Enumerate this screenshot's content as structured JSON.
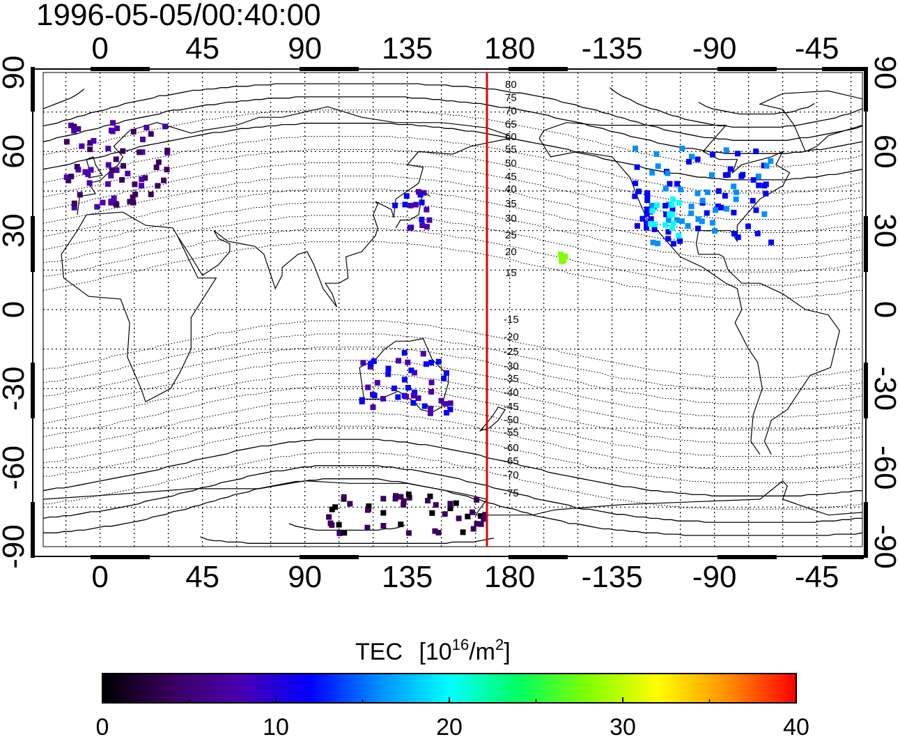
{
  "title": "1996-05-05/00:40:00",
  "lon_tick_labels": [
    "0",
    "45",
    "90",
    "135",
    "180",
    "-135",
    "-90",
    "-45"
  ],
  "lat_tick_labels": [
    "90",
    "60",
    "30",
    "0",
    "-30",
    "-60",
    "-90"
  ],
  "map": {
    "lon_range": [
      -25,
      335
    ],
    "lat_range": [
      -90,
      90
    ],
    "grid": "dotted, every 15 degrees",
    "meridian_line": {
      "lon": 170,
      "color": "#e00000"
    }
  },
  "contour_labels": {
    "north": [
      "80",
      "75",
      "70",
      "65",
      "60",
      "55",
      "50",
      "45",
      "40",
      "35",
      "30",
      "25",
      "20",
      "15"
    ],
    "south": [
      "-15",
      "-20",
      "-25",
      "-30",
      "-35",
      "-40",
      "-45",
      "-50",
      "-55",
      "-60",
      "-65",
      "-70",
      "-75"
    ]
  },
  "colorbar": {
    "label": "TEC",
    "units_prefix": "[10",
    "units_exp": "16",
    "units_mid": "/m",
    "units_exp2": "2",
    "units_suffix": "]",
    "tick_labels": [
      "0",
      "10",
      "20",
      "30",
      "40"
    ],
    "range": [
      0,
      40
    ],
    "colors": [
      "#000000",
      "#3a0060",
      "#4a00b0",
      "#0000ff",
      "#0090ff",
      "#00ffff",
      "#00ff60",
      "#80ff00",
      "#ffff00",
      "#ff9000",
      "#ff0000"
    ]
  },
  "tec_clusters": [
    {
      "region": "Europe",
      "lon": [
        -15,
        30
      ],
      "lat": [
        38,
        72
      ],
      "tec": 6
    },
    {
      "region": "North America",
      "lon": [
        235,
        295
      ],
      "lat": [
        25,
        62
      ],
      "tec": 14
    },
    {
      "region": "Western US",
      "lon": [
        240,
        255
      ],
      "lat": [
        28,
        42
      ],
      "tec": 20
    },
    {
      "region": "Hawaii",
      "lon": [
        202,
        207
      ],
      "lat": [
        18,
        23
      ],
      "tec": 28
    },
    {
      "region": "Japan",
      "lon": [
        128,
        145
      ],
      "lat": [
        30,
        45
      ],
      "tec": 10
    },
    {
      "region": "Australia",
      "lon": [
        115,
        155
      ],
      "lat": [
        -40,
        -15
      ],
      "tec": 10
    },
    {
      "region": "Antarctica",
      "lon": [
        100,
        170
      ],
      "lat": [
        -85,
        -70
      ],
      "tec": 3
    }
  ]
}
